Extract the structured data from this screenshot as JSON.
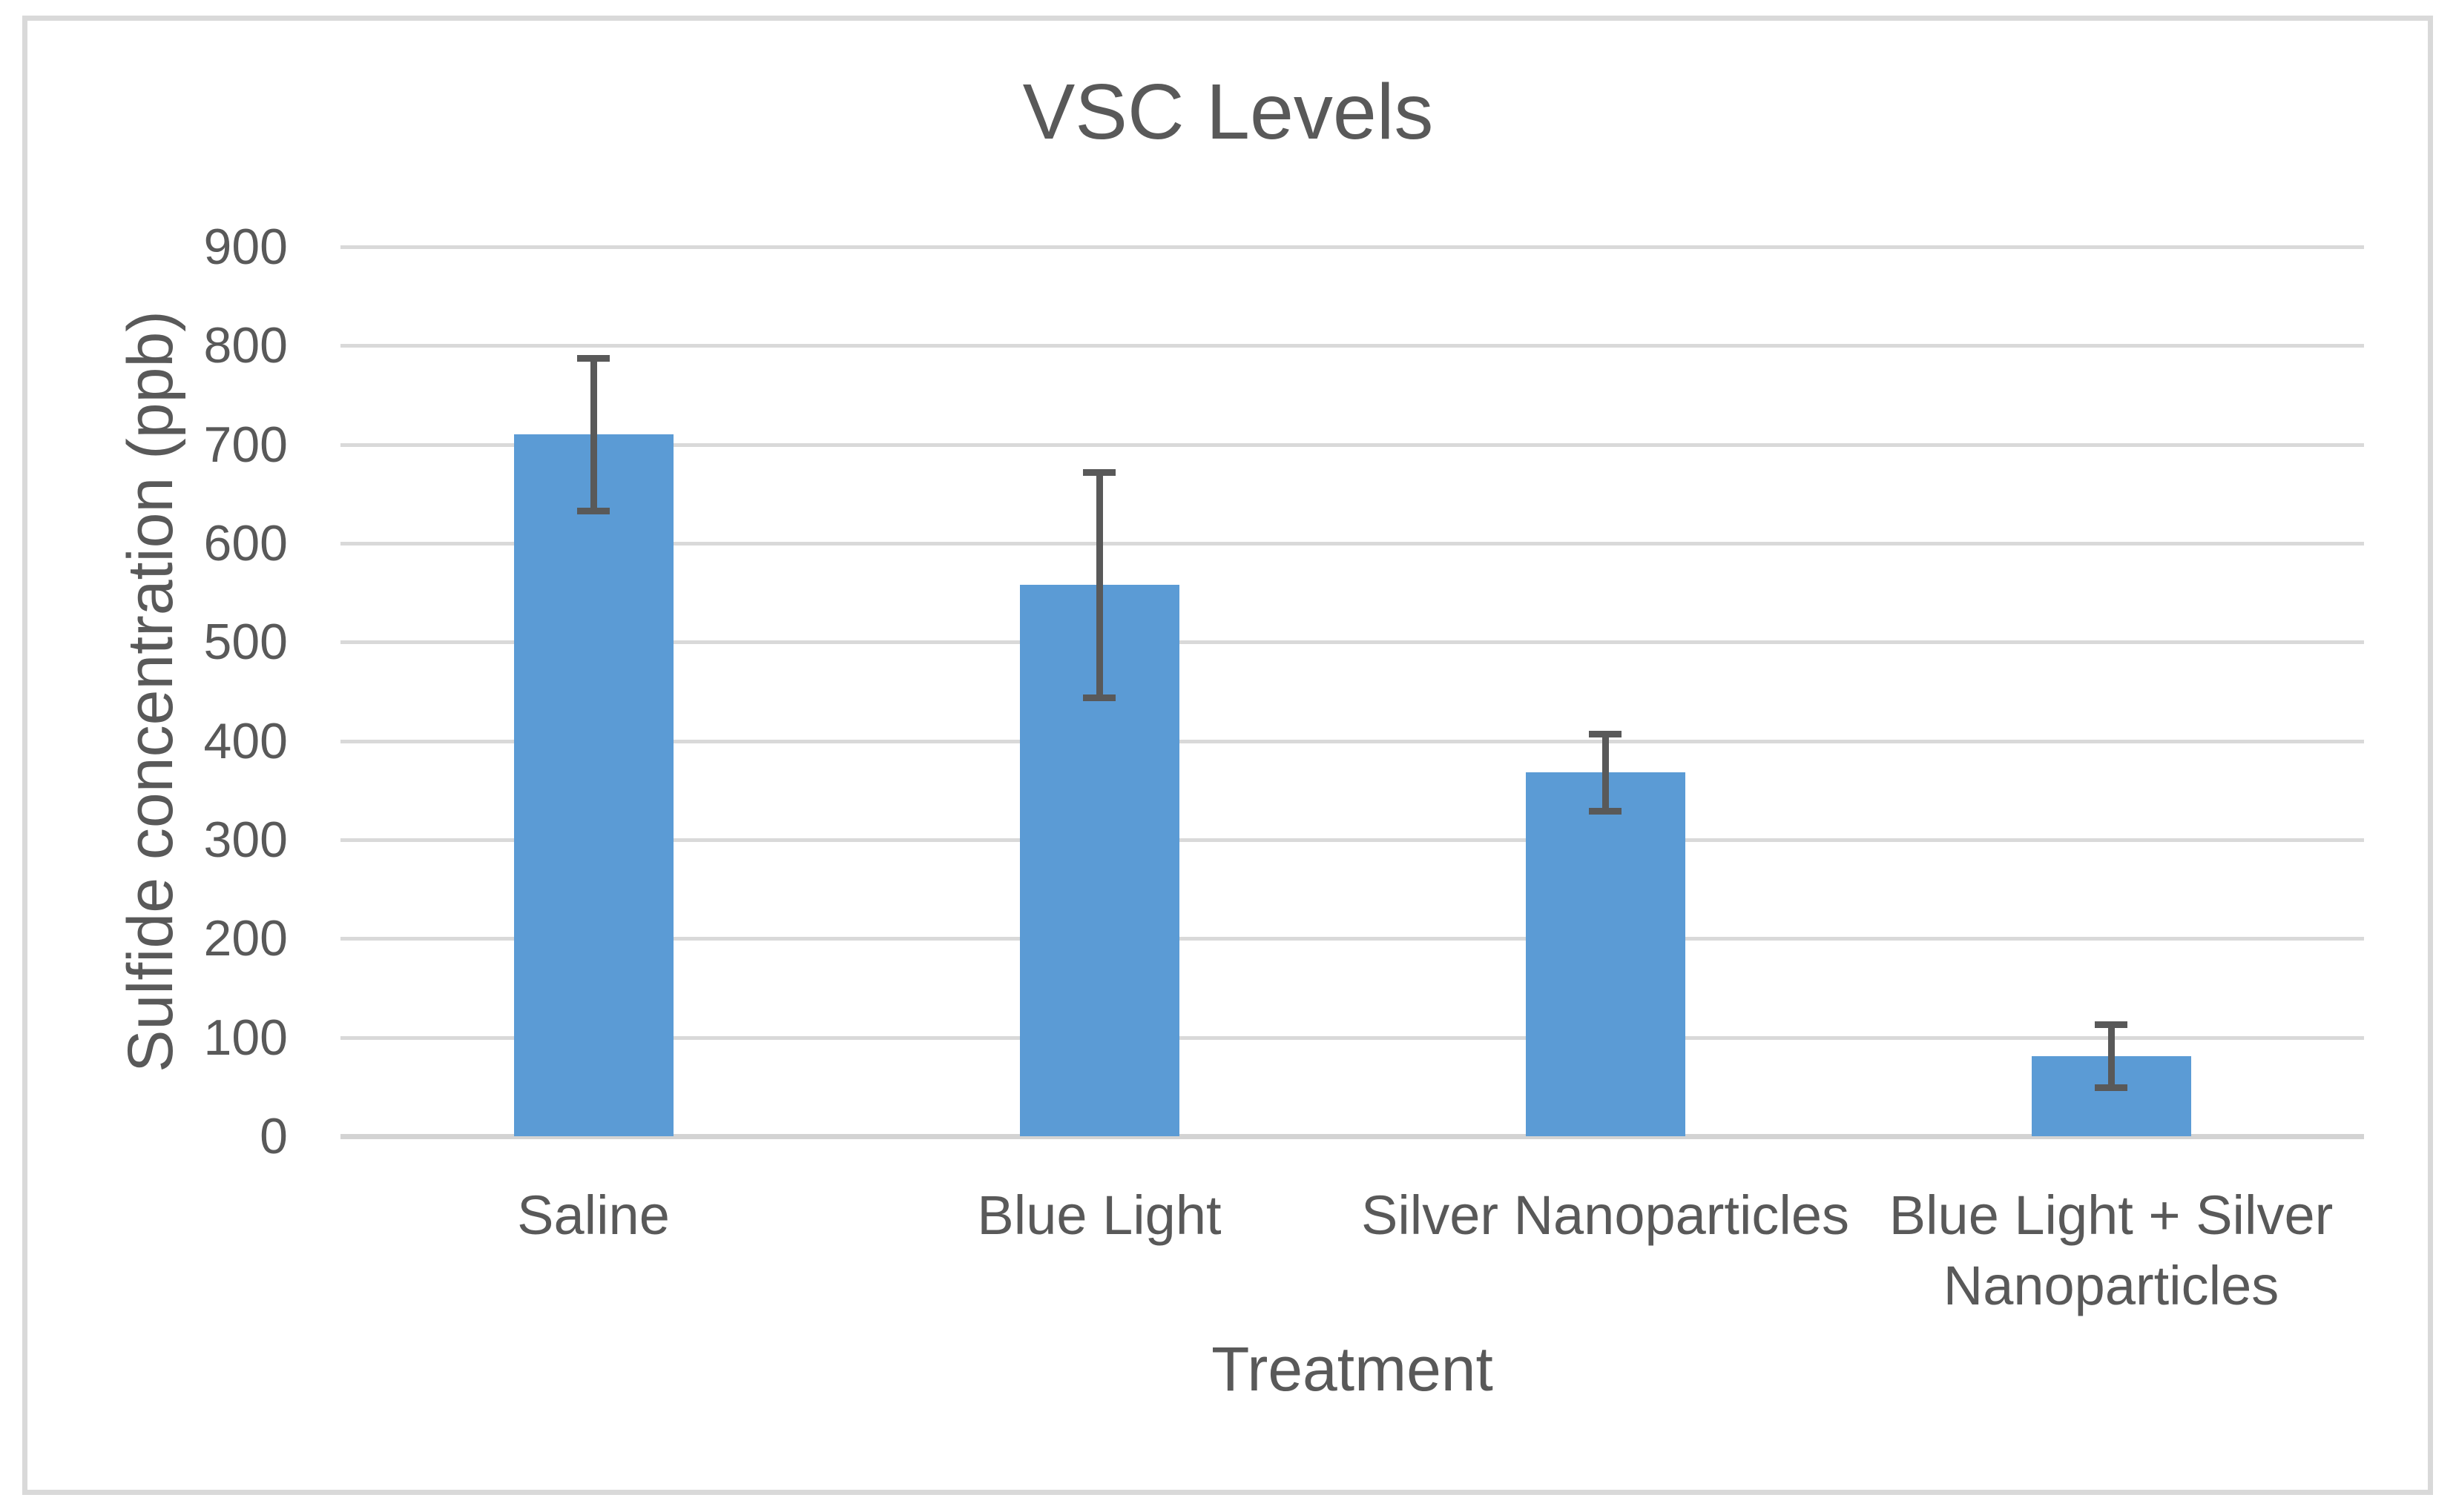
{
  "chart_data": {
    "type": "bar",
    "title": "VSC Levels",
    "categories": [
      "Saline",
      "Blue Light",
      "Silver Nanoparticles",
      "Blue Light + Silver Nanoparticles"
    ],
    "values": [
      710,
      558,
      368,
      81
    ],
    "error_bars": [
      77,
      114,
      39,
      32
    ],
    "xlabel": "Treatment",
    "ylabel": "Sulfide concentration (ppb)",
    "ylim": [
      0,
      900
    ],
    "ytick_step": 100,
    "yticks": [
      0,
      100,
      200,
      300,
      400,
      500,
      600,
      700,
      800,
      900
    ],
    "grid": true,
    "legend": "none",
    "bar_color": "#5B9BD5",
    "error_bar_color": "#595959",
    "text_color": "#595959",
    "gridline_color": "#D9D9D9",
    "border_color": "#D9D9D9"
  }
}
